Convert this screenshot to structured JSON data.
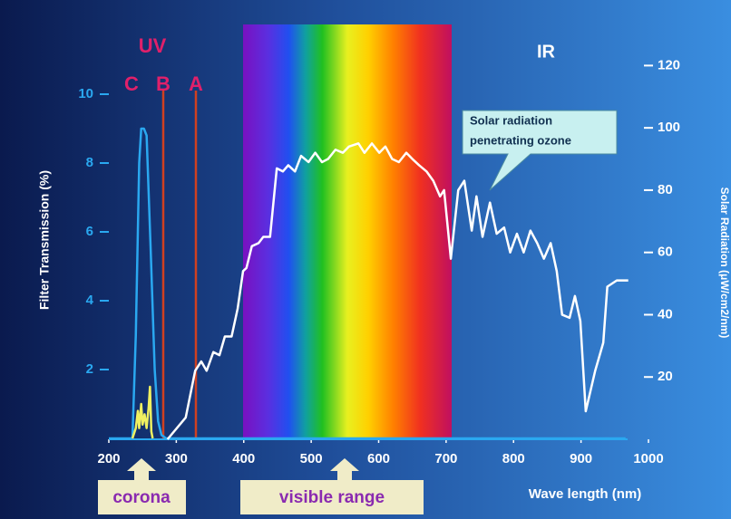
{
  "chart_data": {
    "type": "line",
    "annotations": {
      "uv": "UV",
      "c": "C",
      "b": "B",
      "a": "A",
      "ir": "IR",
      "callout": [
        "Solar radiation",
        "penetrating ozone"
      ],
      "corona": "corona",
      "visible": "visible range"
    },
    "xlabel": "Wave length (nm)",
    "ylabel": "Filter Transmission (%)",
    "y2label": "Solar Radiation (μW/cm2/nm)",
    "xlim": [
      200,
      1000
    ],
    "xticks": [
      200,
      300,
      400,
      500,
      600,
      700,
      800,
      900,
      1000
    ],
    "ylim": [
      0,
      10
    ],
    "yticks": [
      2,
      4,
      6,
      8,
      10
    ],
    "y2lim": [
      0,
      130
    ],
    "y2ticks": [
      20,
      40,
      60,
      80,
      100,
      120
    ],
    "series": [
      {
        "color": "#2aa8f0",
        "axis": "y",
        "x": [
          200,
          235,
          240,
          245,
          248,
          252,
          256,
          262,
          268,
          273,
          278,
          285,
          966
        ],
        "values": [
          0,
          0,
          3,
          8,
          9,
          9,
          8.8,
          5.5,
          2,
          0.5,
          0.1,
          0,
          0
        ]
      },
      {
        "color": "#f0f060",
        "axis": "y",
        "x": [
          235,
          240,
          243,
          245,
          248,
          250,
          253,
          256,
          259,
          261,
          263,
          265
        ],
        "values": [
          0,
          0.3,
          0.8,
          0.3,
          1.0,
          0.4,
          0.7,
          0.3,
          0.9,
          1.5,
          0.2,
          0
        ]
      },
      {
        "color": "#ffffff",
        "axis": "y2",
        "x": [
          287,
          314,
          328,
          337,
          345,
          355,
          364,
          372,
          382,
          391,
          399,
          404,
          412,
          422,
          429,
          439,
          449,
          458,
          466,
          476,
          485,
          496,
          506,
          516,
          525,
          536,
          547,
          556,
          570,
          579,
          590,
          601,
          610,
          620,
          630,
          641,
          650,
          660,
          671,
          681,
          691,
          697,
          707,
          718,
          727,
          738,
          745,
          754,
          765,
          775,
          786,
          795,
          805,
          815,
          825,
          835,
          845,
          855,
          864,
          872,
          883,
          891,
          899,
          907,
          921,
          933,
          939,
          953,
          970
        ],
        "values": [
          0,
          7,
          22,
          25,
          22,
          28,
          27,
          33,
          33,
          42,
          54,
          55,
          62,
          63,
          65,
          65,
          87,
          86,
          88,
          86,
          91,
          89,
          92,
          89,
          90,
          93,
          92,
          94,
          95,
          92,
          95,
          92,
          94,
          90,
          89,
          92,
          90,
          88,
          86,
          83,
          78,
          80,
          58,
          80,
          83,
          67,
          78,
          65,
          76,
          66,
          68,
          60,
          66,
          60,
          67,
          63,
          58,
          63,
          54,
          40,
          39,
          46,
          38,
          9,
          22,
          31,
          49,
          51,
          51
        ]
      }
    ]
  }
}
